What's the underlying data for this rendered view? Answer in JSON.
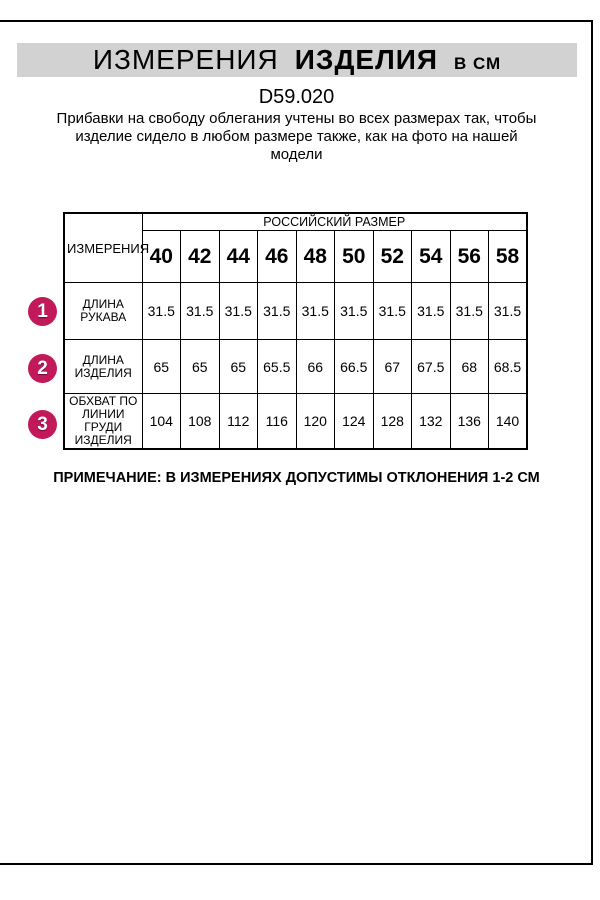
{
  "header": {
    "title_word1": "ИЗМЕРЕНИЯ",
    "title_word2": "ИЗДЕЛИЯ",
    "title_unit": "В СМ",
    "product_code": "D59.020",
    "description_lines": [
      "Прибавки на свободу облегания учтены во всех размерах так, чтобы",
      "изделие сидело в любом размере также, как на фото на нашей",
      "модели"
    ]
  },
  "table": {
    "corner_header": "ИЗМЕРЕНИЯ",
    "size_group_header": "РОССИЙСКИЙ РАЗМЕР",
    "sizes": [
      "40",
      "42",
      "44",
      "46",
      "48",
      "50",
      "52",
      "54",
      "56",
      "58"
    ],
    "rows": [
      {
        "num": "1",
        "label": "ДЛИНА РУКАВА",
        "values": [
          "31.5",
          "31.5",
          "31.5",
          "31.5",
          "31.5",
          "31.5",
          "31.5",
          "31.5",
          "31.5",
          "31.5"
        ]
      },
      {
        "num": "2",
        "label": "ДЛИНА ИЗДЕЛИЯ",
        "values": [
          "65",
          "65",
          "65",
          "65.5",
          "66",
          "66.5",
          "67",
          "67.5",
          "68",
          "68.5"
        ]
      },
      {
        "num": "3",
        "label": "ОБХВАТ ПО ЛИНИИ ГРУДИ ИЗДЕЛИЯ",
        "values": [
          "104",
          "108",
          "112",
          "116",
          "120",
          "124",
          "128",
          "132",
          "136",
          "140"
        ]
      }
    ]
  },
  "footer": {
    "note": "ПРИМЕЧАНИЕ: В ИЗМЕРЕНИЯХ ДОПУСТИМЫ ОТКЛОНЕНИЯ 1-2 СМ"
  },
  "colors": {
    "accent_circle": "#c1195a",
    "title_bar_bg": "#d2d2d2",
    "border": "#000000"
  }
}
